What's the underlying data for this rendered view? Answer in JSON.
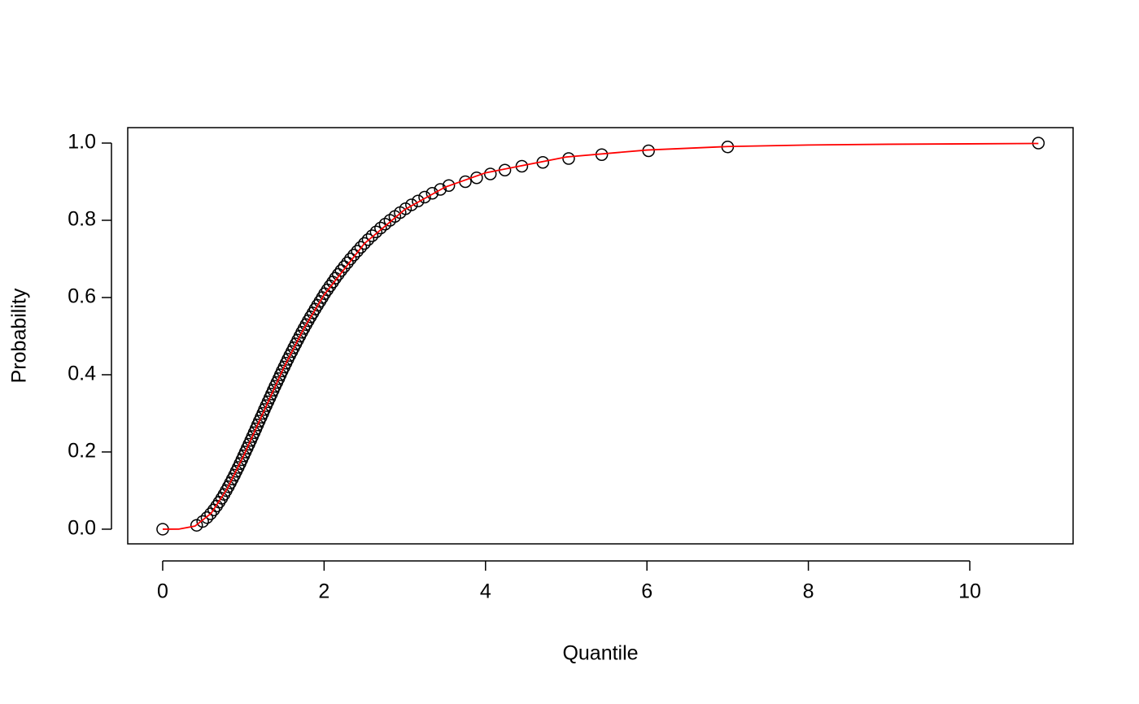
{
  "chart_data": {
    "type": "scatter",
    "xlabel": "Quantile",
    "ylabel": "Probability",
    "xlim": [
      -0.433,
      11.28
    ],
    "ylim": [
      -0.038,
      1.04
    ],
    "xticks": [
      0,
      2,
      4,
      6,
      8,
      10
    ],
    "yticks": [
      {
        "value": 0,
        "label": "0.0"
      },
      {
        "value": 0.2,
        "label": "0.2"
      },
      {
        "value": 0.4,
        "label": "0.4"
      },
      {
        "value": 0.6,
        "label": "0.6"
      },
      {
        "value": 0.8,
        "label": "0.8"
      },
      {
        "value": 1,
        "label": "1.0"
      }
    ],
    "series": [
      {
        "type": "scatter",
        "color": "#000000",
        "x": [
          0,
          0.421,
          0.496,
          0.549,
          0.594,
          0.633,
          0.668,
          0.7,
          0.731,
          0.76,
          0.787,
          0.814,
          0.839,
          0.864,
          0.889,
          0.912,
          0.936,
          0.959,
          0.981,
          1.003,
          1.025,
          1.047,
          1.069,
          1.091,
          1.112,
          1.134,
          1.155,
          1.176,
          1.197,
          1.219,
          1.241,
          1.261,
          1.283,
          1.305,
          1.327,
          1.349,
          1.37,
          1.392,
          1.415,
          1.438,
          1.459,
          1.481,
          1.505,
          1.528,
          1.551,
          1.575,
          1.6,
          1.624,
          1.649,
          1.674,
          1.699,
          1.724,
          1.75,
          1.777,
          1.804,
          1.832,
          1.861,
          1.889,
          1.918,
          1.949,
          1.978,
          2.007,
          2.04,
          2.073,
          2.107,
          2.139,
          2.175,
          2.211,
          2.249,
          2.289,
          2.326,
          2.368,
          2.411,
          2.454,
          2.499,
          2.545,
          2.595,
          2.645,
          2.7,
          2.756,
          2.816,
          2.877,
          2.942,
          3.009,
          3.083,
          3.164,
          3.246,
          3.34,
          3.44,
          3.545,
          3.75,
          3.89,
          4.06,
          4.24,
          4.45,
          4.71,
          5.03,
          5.44,
          6.02,
          7.0,
          10.85
        ],
        "values": [
          0,
          0.01,
          0.02,
          0.03,
          0.04,
          0.05,
          0.06,
          0.07,
          0.08,
          0.09,
          0.1,
          0.11,
          0.12,
          0.13,
          0.14,
          0.15,
          0.16,
          0.17,
          0.18,
          0.19,
          0.2,
          0.21,
          0.22,
          0.23,
          0.24,
          0.25,
          0.26,
          0.27,
          0.28,
          0.29,
          0.3,
          0.31,
          0.32,
          0.33,
          0.34,
          0.35,
          0.36,
          0.37,
          0.38,
          0.39,
          0.4,
          0.41,
          0.42,
          0.43,
          0.44,
          0.45,
          0.46,
          0.47,
          0.48,
          0.49,
          0.5,
          0.51,
          0.52,
          0.53,
          0.54,
          0.55,
          0.56,
          0.57,
          0.58,
          0.59,
          0.6,
          0.61,
          0.62,
          0.63,
          0.64,
          0.65,
          0.66,
          0.67,
          0.68,
          0.69,
          0.7,
          0.71,
          0.72,
          0.73,
          0.74,
          0.75,
          0.76,
          0.77,
          0.78,
          0.79,
          0.8,
          0.81,
          0.82,
          0.83,
          0.84,
          0.85,
          0.86,
          0.87,
          0.88,
          0.89,
          0.9,
          0.91,
          0.92,
          0.93,
          0.94,
          0.95,
          0.96,
          0.97,
          0.98,
          0.99,
          1
        ]
      },
      {
        "type": "line",
        "color": "#ff0000",
        "x": [
          0,
          0.2,
          0.4,
          0.6,
          0.8,
          1,
          1.25,
          1.5,
          1.75,
          2,
          2.5,
          3,
          3.5,
          4,
          5,
          6,
          7,
          8,
          9,
          10,
          10.85
        ],
        "values": [
          0,
          0.0002,
          0.008,
          0.041,
          0.105,
          0.189,
          0.304,
          0.418,
          0.52,
          0.607,
          0.74,
          0.828,
          0.886,
          0.923,
          0.964,
          0.982,
          0.991,
          0.995,
          0.997,
          0.998,
          0.999
        ]
      }
    ]
  }
}
